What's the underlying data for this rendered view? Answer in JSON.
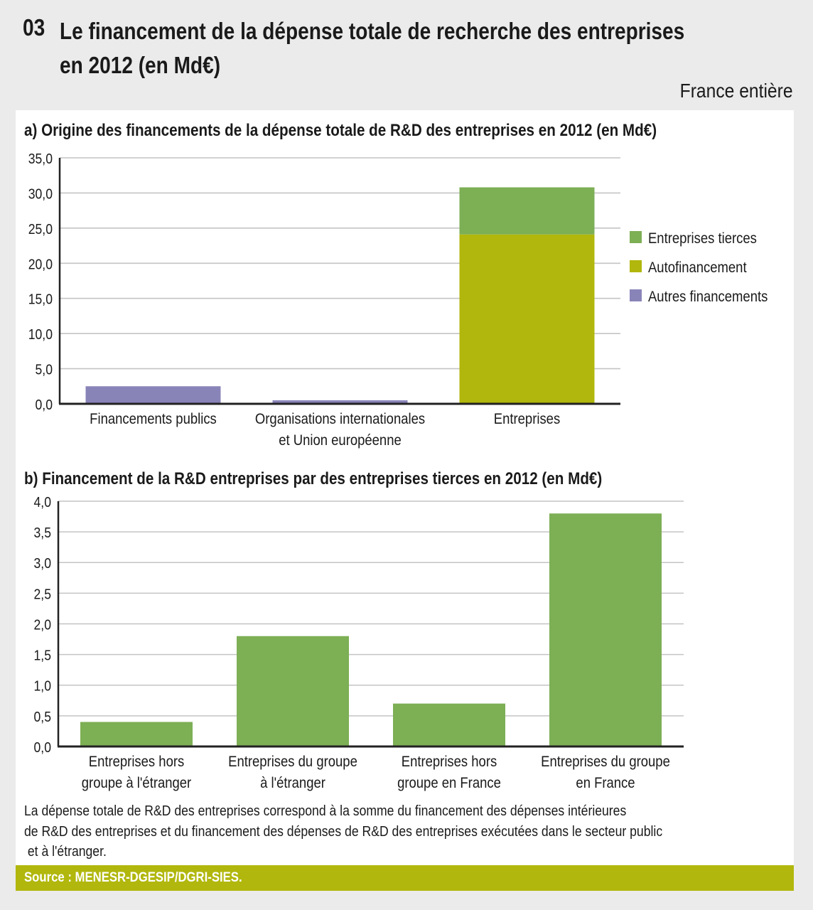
{
  "header": {
    "number": "03",
    "title_line1": "Le financement de la dépense totale de recherche des entreprises",
    "title_line2": "en 2012 (en Md€)",
    "scope": "France entière"
  },
  "colors": {
    "entreprises_tierces": "#7daf55",
    "autofinancement": "#b1b70c",
    "autres_financements": "#8984b8",
    "source_bar": "#b1b70c",
    "background": "#ebebeb"
  },
  "chart_data": [
    {
      "type": "bar",
      "stacked": true,
      "title": "a) Origine des financements de la dépense totale de R&D des entreprises en 2012 (en Md€)",
      "categories": [
        [
          "Financements publics"
        ],
        [
          "Organisations internationales",
          "et Union européenne"
        ],
        [
          "Entreprises"
        ]
      ],
      "series": [
        {
          "name": "Autres financements",
          "color": "#8984b8",
          "values": [
            2.5,
            0.5,
            0
          ]
        },
        {
          "name": "Autofinancement",
          "color": "#b1b70c",
          "values": [
            0,
            0,
            24.1
          ]
        },
        {
          "name": "Entreprises tierces",
          "color": "#7daf55",
          "values": [
            0,
            0,
            6.7
          ]
        }
      ],
      "legend": [
        "Entreprises tierces",
        "Autofinancement",
        "Autres financements"
      ],
      "legend_colors": [
        "#7daf55",
        "#b1b70c",
        "#8984b8"
      ],
      "legend_position": "right",
      "yticks": [
        "0,0",
        "5,0",
        "10,0",
        "15,0",
        "20,0",
        "25,0",
        "30,0",
        "35,0"
      ],
      "ylim": [
        0,
        35
      ],
      "xlabel": "",
      "ylabel": "",
      "grid": true
    },
    {
      "type": "bar",
      "title": "b) Financement de la R&D entreprises par des entreprises tierces en 2012 (en Md€)",
      "categories": [
        [
          "Entreprises hors",
          "groupe à l'étranger"
        ],
        [
          "Entreprises du groupe",
          "à l'étranger"
        ],
        [
          "Entreprises hors",
          "groupe en France"
        ],
        [
          "Entreprises du groupe",
          "en France"
        ]
      ],
      "values": [
        0.4,
        1.8,
        0.7,
        3.8
      ],
      "color": "#7daf55",
      "yticks": [
        "0,0",
        "0,5",
        "1,0",
        "1,5",
        "2,0",
        "2,5",
        "3,0",
        "3,5",
        "4,0"
      ],
      "ylim": [
        0,
        4
      ],
      "xlabel": "",
      "ylabel": "",
      "grid": true
    }
  ],
  "note": "La dépense totale de R&D des entreprises correspond à la somme du financement des dépenses intérieures\nde R&D des entreprises et du financement des dépenses de R&D des entreprises exécutées dans le secteur public\n et à l'étranger.",
  "source": "Source : MENESR-DGESIP/DGRI-SIES."
}
